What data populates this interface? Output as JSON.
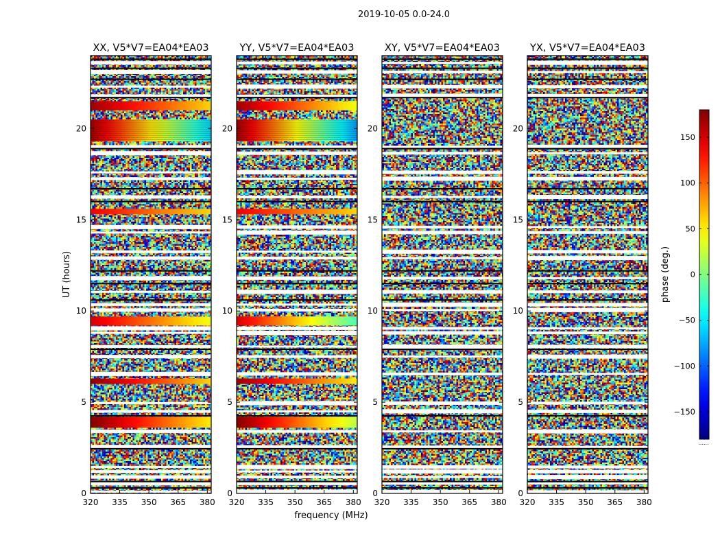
{
  "figure": {
    "suptitle": "2019-10-05 0.0-24.0",
    "xlabel": "frequency (MHz)",
    "ylabel": "UT (hours)",
    "colorbar_label": "phase (deg.)",
    "colorbar_footer": "......"
  },
  "chart_data": {
    "type": "heatmap",
    "colormap": "jet",
    "xlim": [
      320,
      382
    ],
    "ylim": [
      0,
      24
    ],
    "clim": [
      -180,
      180
    ],
    "xticks": [
      320,
      335,
      350,
      365,
      380
    ],
    "xtick_labels": [
      "320",
      "335",
      "350",
      "365",
      "380"
    ],
    "yticks": [
      0,
      5,
      10,
      15,
      20
    ],
    "ytick_labels": [
      "0",
      "5",
      "10",
      "15",
      "20"
    ],
    "colorbar_ticks": [
      150,
      100,
      50,
      0,
      -50,
      -100,
      -150
    ],
    "colorbar_tick_labels": [
      "150",
      "100",
      "50",
      "0",
      "−50",
      "−100",
      "−150"
    ],
    "panels": [
      {
        "title": "XX, V5*V7=EA04*EA03",
        "coherent_bands": [
          {
            "t0": 3.6,
            "t1": 4.2,
            "phase_start": 180,
            "phase_end": 50
          },
          {
            "t0": 6.0,
            "t1": 6.3,
            "phase_start": 175,
            "phase_end": 60
          },
          {
            "t0": 9.2,
            "t1": 9.7,
            "phase_start": 150,
            "phase_end": 40
          },
          {
            "t0": 15.3,
            "t1": 15.6,
            "phase_start": 140,
            "phase_end": 60
          },
          {
            "t0": 19.3,
            "t1": 20.5,
            "phase_start": 170,
            "phase_end": -60
          },
          {
            "t0": 21.0,
            "t1": 21.5,
            "phase_start": 170,
            "phase_end": 60
          }
        ]
      },
      {
        "title": "YY, V5*V7=EA04*EA03",
        "coherent_bands": [
          {
            "t0": 3.6,
            "t1": 4.2,
            "phase_start": 180,
            "phase_end": 20
          },
          {
            "t0": 6.0,
            "t1": 6.3,
            "phase_start": 170,
            "phase_end": 50
          },
          {
            "t0": 9.2,
            "t1": 9.7,
            "phase_start": 150,
            "phase_end": -20
          },
          {
            "t0": 15.3,
            "t1": 15.6,
            "phase_start": 140,
            "phase_end": 60
          },
          {
            "t0": 19.3,
            "t1": 20.5,
            "phase_start": 170,
            "phase_end": -80
          },
          {
            "t0": 21.0,
            "t1": 21.5,
            "phase_start": 170,
            "phase_end": 40
          }
        ]
      },
      {
        "title": "XY, V5*V7=EA04*EA03",
        "coherent_bands": []
      },
      {
        "title": "YX, V5*V7=EA04*EA03",
        "coherent_bands": []
      }
    ],
    "flagged_rows_hours": [
      0.1,
      0.55,
      0.9,
      1.2,
      1.45,
      2.55,
      3.4,
      4.5,
      4.95,
      6.55,
      7.5,
      8.05,
      8.8,
      9.05,
      10.05,
      10.35,
      11.05,
      11.8,
      12.9,
      13.25,
      14.3,
      14.6,
      16.25,
      17.25,
      17.6,
      18.65,
      19.0,
      21.8,
      22.3,
      23.1,
      23.6
    ],
    "black_rows_hours": [
      0.3,
      0.65,
      2.45,
      4.25,
      7.9,
      10.6,
      11.5,
      12.2,
      16.0,
      16.7,
      18.9,
      21.7,
      22.7,
      23.3,
      23.8
    ]
  }
}
